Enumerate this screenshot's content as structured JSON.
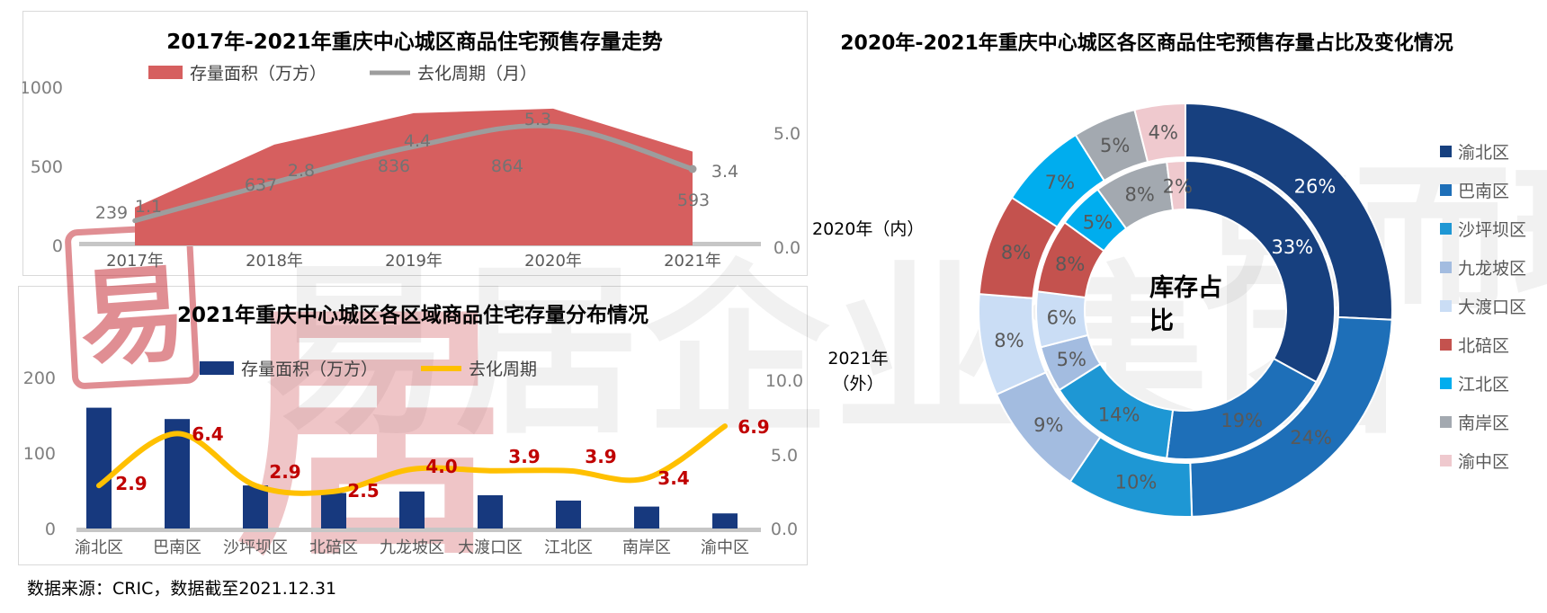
{
  "footer": {
    "source": "数据来源：CRIC，数据截至2021.12.31"
  },
  "watermark": {
    "gray_text_1": "易居企业集团",
    "gray_text_2": "克而瑞",
    "seal_char": "易",
    "red_char": "居"
  },
  "chart_data": [
    {
      "type": "area",
      "title": "2017年-2021年重庆中心城区商品住宅预售存量走势",
      "categories": [
        "2017年",
        "2018年",
        "2019年",
        "2020年",
        "2021年"
      ],
      "series": [
        {
          "name": "存量面积（万方）",
          "kind": "area",
          "axis": "left",
          "color": "#D65F5F",
          "values": [
            239,
            637,
            836,
            864,
            593
          ]
        },
        {
          "name": "去化周期（月）",
          "kind": "line",
          "axis": "right",
          "color": "#9D9D9D",
          "values": [
            1.1,
            2.8,
            4.4,
            5.3,
            3.4
          ]
        }
      ],
      "left_axis": {
        "tick_labels": [
          "0",
          "500",
          "1000"
        ],
        "range": [
          0,
          1000
        ]
      },
      "right_axis": {
        "tick_labels": [
          "0.0",
          "5.0"
        ],
        "range": [
          0,
          5
        ]
      },
      "label_color": "#737373",
      "grid": false,
      "legend_position": "top"
    },
    {
      "type": "bar",
      "title": "2021年重庆中心城区各区域商品住宅存量分布情况",
      "categories": [
        "渝北区",
        "巴南区",
        "沙坪坝区",
        "北碚区",
        "九龙坡区",
        "大渡口区",
        "江北区",
        "南岸区",
        "渝中区"
      ],
      "series": [
        {
          "name": "存量面积（万方）",
          "kind": "bar",
          "axis": "left",
          "color": "#17397E",
          "values": [
            160,
            145,
            57,
            47,
            49,
            44,
            37,
            29,
            20
          ]
        },
        {
          "name": "去化周期",
          "kind": "line",
          "axis": "right",
          "color": "#FFC000",
          "label_color": "#C00000",
          "values": [
            2.9,
            6.4,
            2.9,
            2.5,
            4.0,
            3.9,
            3.9,
            3.4,
            6.9
          ]
        }
      ],
      "left_axis": {
        "tick_labels": [
          "0",
          "100",
          "200"
        ],
        "range": [
          0,
          200
        ]
      },
      "right_axis": {
        "tick_labels": [
          "0.0",
          "5.0",
          "10.0"
        ],
        "range": [
          0,
          10
        ]
      },
      "grid": false,
      "legend_position": "top"
    },
    {
      "type": "pie",
      "title": "2020年-2021年重庆中心城区各区商品住宅预售存量占比及变化情况",
      "center_label_line1": "库存占",
      "center_label_line2": "比",
      "ring_label_inner": "2020年（内）",
      "ring_label_outer_line1": "2021年",
      "ring_label_outer_line2": "（外）",
      "categories": [
        "渝北区",
        "巴南区",
        "沙坪坝区",
        "九龙坡区",
        "大渡口区",
        "北碚区",
        "江北区",
        "南岸区",
        "渝中区"
      ],
      "colors": [
        "#17407F",
        "#1E6FB8",
        "#1E97D4",
        "#A3BCE0",
        "#CADDF5",
        "#C4524E",
        "#00ADEE",
        "#A3A9B0",
        "#EFC9CE"
      ],
      "series": [
        {
          "name": "2020年（内）",
          "ring": "inner",
          "values": [
            33,
            19,
            14,
            5,
            6,
            8,
            5,
            8,
            2
          ]
        },
        {
          "name": "2021年（外）",
          "ring": "outer",
          "values": [
            26,
            24,
            10,
            9,
            8,
            8,
            7,
            5,
            4
          ]
        }
      ],
      "slice_label_color": "#595959",
      "slice_label_color_first": "#FFFFFF",
      "legend_position": "right"
    }
  ]
}
